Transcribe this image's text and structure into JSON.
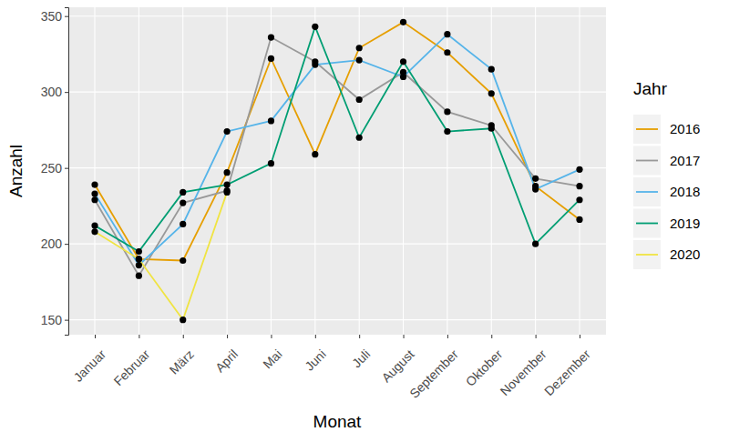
{
  "chart_data": {
    "type": "line",
    "x_label": "Monat",
    "y_label": "Anzahl",
    "legend_title": "Jahr",
    "categories": [
      "Januar",
      "Februar",
      "März",
      "April",
      "Mai",
      "Juni",
      "Juli",
      "August",
      "September",
      "Oktober",
      "November",
      "Dezember"
    ],
    "series": [
      {
        "name": "2016",
        "color": "#E69F00",
        "values": [
          239,
          190,
          189,
          247,
          322,
          259,
          329,
          346,
          326,
          299,
          238,
          216
        ]
      },
      {
        "name": "2017",
        "color": "#999999",
        "values": [
          229,
          179,
          227,
          235,
          336,
          320,
          295,
          313,
          287,
          278,
          243,
          238
        ]
      },
      {
        "name": "2018",
        "color": "#56B4E9",
        "values": [
          233,
          186,
          213,
          274,
          281,
          318,
          321,
          310,
          338,
          315,
          236,
          249
        ]
      },
      {
        "name": "2019",
        "color": "#009E73",
        "values": [
          212,
          195,
          234,
          239,
          253,
          343,
          270,
          320,
          274,
          276,
          200,
          229
        ]
      },
      {
        "name": "2020",
        "color": "#F0E442",
        "values": [
          208,
          190,
          150,
          234,
          null,
          null,
          null,
          null,
          null,
          null,
          null,
          null
        ]
      }
    ],
    "ylim": [
      140.2,
      355.8
    ],
    "yticks": [
      150,
      200,
      250,
      300,
      350
    ],
    "grid": true,
    "legend": "right",
    "marker": "circle"
  }
}
